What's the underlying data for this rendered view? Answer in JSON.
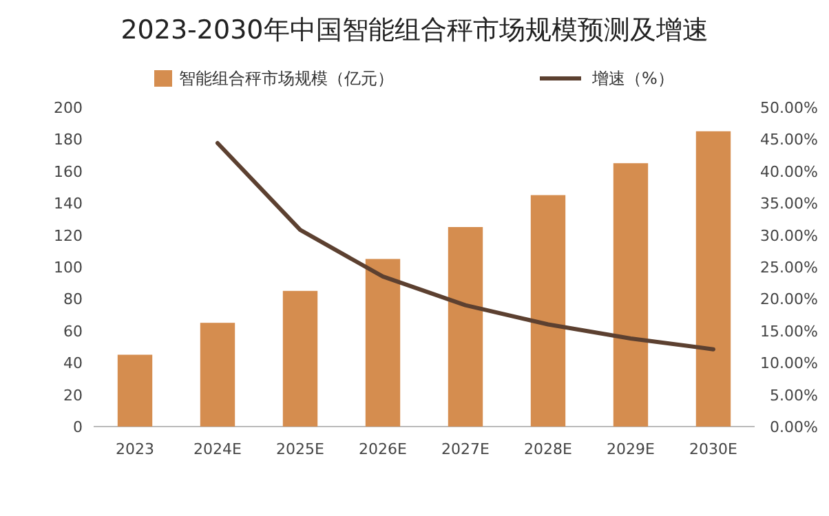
{
  "chart_data": {
    "type": "bar",
    "title": "2023-2030年中国智能组合秤市场规模预测及增速",
    "categories": [
      "2023",
      "2024E",
      "2025E",
      "2026E",
      "2027E",
      "2028E",
      "2029E",
      "2030E"
    ],
    "series": [
      {
        "name": "智能组合秤市场规模（亿元）",
        "color": "#d58d4f",
        "values": [
          45,
          65,
          85,
          105,
          125,
          145,
          165,
          185
        ]
      },
      {
        "name": "增速（%）",
        "type": "line",
        "axis": "y2",
        "color": "#5c4030",
        "values": [
          null,
          44.4,
          30.8,
          23.5,
          19.0,
          16.0,
          13.8,
          12.1
        ]
      }
    ],
    "ylim": [
      0,
      200
    ],
    "yticks": [
      0,
      20,
      40,
      60,
      80,
      100,
      120,
      140,
      160,
      180,
      200
    ],
    "y2lim": [
      0,
      50
    ],
    "y2ticks": [
      {
        "value": 0,
        "label": "0.00%"
      },
      {
        "value": 5,
        "label": "5.00%"
      },
      {
        "value": 10,
        "label": "10.00%"
      },
      {
        "value": 15,
        "label": "15.00%"
      },
      {
        "value": 20,
        "label": "20.00%"
      },
      {
        "value": 25,
        "label": "25.00%"
      },
      {
        "value": 30,
        "label": "30.00%"
      },
      {
        "value": 35,
        "label": "35.00%"
      },
      {
        "value": 40,
        "label": "40.00%"
      },
      {
        "value": 45,
        "label": "45.00%"
      },
      {
        "value": 50,
        "label": "50.00%"
      }
    ],
    "grid": false,
    "legend": "top",
    "marker": "none",
    "line_style": "solid"
  }
}
